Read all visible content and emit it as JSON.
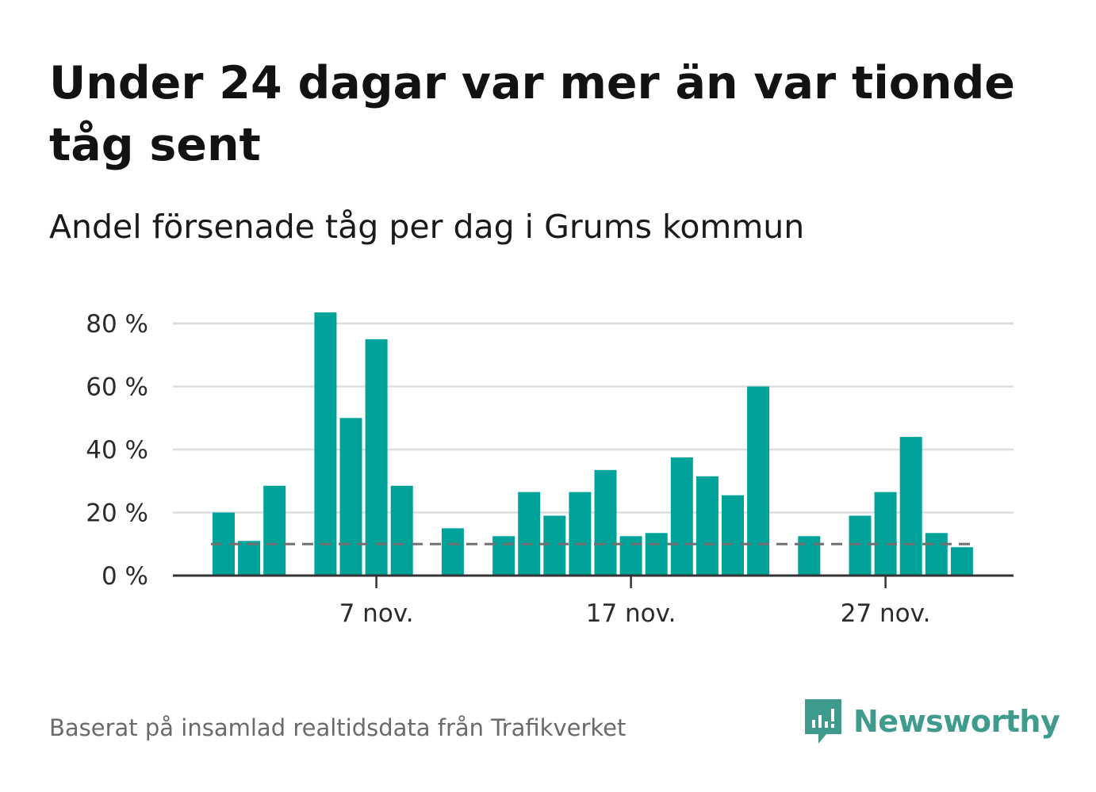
{
  "title": "Under 24 dagar var mer än var tionde tåg sent",
  "subtitle": "Andel försenade tåg per dag i Grums kommun",
  "source": "Baserat på insamlad realtidsdata från Trafikverket",
  "brand": {
    "name": "Newsworthy",
    "icon": "newsworthy-logo-icon",
    "color": "#3f9b8d"
  },
  "chart_data": {
    "type": "bar",
    "x": [
      "1 nov.",
      "2 nov.",
      "3 nov.",
      "4 nov.",
      "5 nov.",
      "6 nov.",
      "7 nov.",
      "8 nov.",
      "9 nov.",
      "10 nov.",
      "11 nov.",
      "12 nov.",
      "13 nov.",
      "14 nov.",
      "15 nov.",
      "16 nov.",
      "17 nov.",
      "18 nov.",
      "19 nov.",
      "20 nov.",
      "21 nov.",
      "22 nov.",
      "23 nov.",
      "24 nov.",
      "25 nov.",
      "26 nov.",
      "27 nov.",
      "28 nov.",
      "29 nov.",
      "30 nov."
    ],
    "values": [
      20,
      11,
      28.5,
      null,
      83.5,
      50,
      75,
      28.5,
      null,
      15,
      null,
      12.5,
      26.5,
      19,
      26.5,
      33.5,
      12.5,
      13.5,
      37.5,
      31.5,
      25.5,
      60,
      null,
      12.5,
      null,
      19,
      26.5,
      44,
      13.5,
      9
    ],
    "x_tick_labels": [
      "7 nov.",
      "17 nov.",
      "27 nov."
    ],
    "y_tick_labels": [
      "0 %",
      "20 %",
      "40 %",
      "60 %",
      "80 %"
    ],
    "ylim": [
      0,
      88
    ],
    "reference_line": 10,
    "bar_color": "#00a39a",
    "reference_color": "#707070",
    "grid": true
  }
}
